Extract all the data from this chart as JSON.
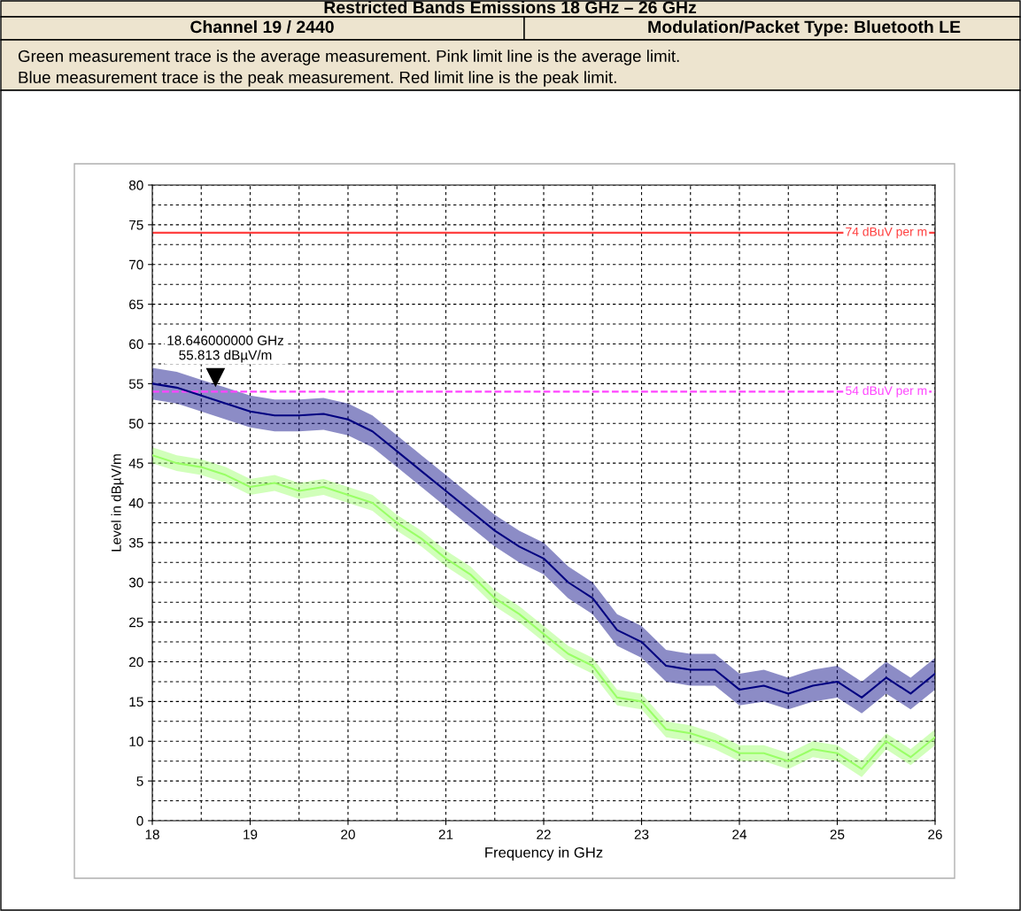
{
  "chart_data": {
    "type": "line",
    "title": "Restricted Bands Emissions 18 GHz – 26 GHz",
    "annotations": [
      "Channel 19 / 2440",
      "Modulation/Packet Type: Bluetooth LE",
      "Green measurement trace is the average measurement. Pink limit line is the average limit.",
      "Blue measurement trace is the peak measurement. Red limit line is the peak limit.",
      {
        "text": "18.646000000 GHz\n55.813 dBµV/m",
        "x": 18.646,
        "y": 55.813
      }
    ],
    "xlabel": "Frequency in GHz",
    "ylabel": "Level in dBµV/m",
    "x": [
      18.0,
      18.25,
      18.5,
      18.75,
      19.0,
      19.25,
      19.5,
      19.75,
      20.0,
      20.25,
      20.5,
      20.75,
      21.0,
      21.25,
      21.5,
      21.75,
      22.0,
      22.25,
      22.5,
      22.75,
      23.0,
      23.25,
      23.5,
      23.75,
      24.0,
      24.25,
      24.5,
      24.75,
      25.0,
      25.25,
      25.5,
      25.75,
      26.0
    ],
    "series": [
      {
        "color": "#000080",
        "values": [
          55,
          54.5,
          53.5,
          52.5,
          51.5,
          51,
          51,
          51.2,
          50.5,
          49,
          46.5,
          44,
          41.5,
          39,
          36.5,
          34.5,
          33,
          30,
          28,
          24,
          22.5,
          19.5,
          19,
          19,
          16.5,
          17,
          16,
          17,
          17.5,
          15.5,
          18,
          16,
          18.5
        ],
        "lower": [
          53,
          52.5,
          51.5,
          50.5,
          49.5,
          49,
          49,
          49.2,
          48.5,
          47,
          44.5,
          42,
          39.5,
          37,
          34.5,
          32.5,
          31,
          28,
          26,
          22,
          20.5,
          17.5,
          17,
          17,
          14.5,
          15,
          14,
          15,
          15.5,
          13.5,
          16,
          14,
          16.5
        ],
        "upper": [
          57,
          56.5,
          55.5,
          54.5,
          53.5,
          53,
          53,
          53.2,
          52.5,
          51,
          48.5,
          46,
          43.5,
          41,
          38.5,
          36.5,
          35,
          32,
          30,
          26,
          24.5,
          21.5,
          21,
          21,
          18.5,
          19,
          18,
          19,
          19.5,
          17.5,
          20,
          18,
          20.5
        ]
      },
      {
        "color": "#99ff66",
        "values": [
          46,
          45,
          44.5,
          43.5,
          42,
          42.5,
          41.5,
          42,
          41,
          40,
          37.5,
          35.5,
          33,
          31,
          28,
          26,
          23.5,
          21,
          19.5,
          15.5,
          15,
          11.5,
          11,
          10,
          8.5,
          8.5,
          7.5,
          9,
          8.5,
          6.5,
          10,
          8,
          10.5
        ],
        "lower": [
          45,
          44,
          43.5,
          42.5,
          41,
          41.5,
          40.5,
          41,
          40,
          39,
          36.5,
          34.5,
          32,
          30,
          27,
          25,
          22.5,
          20,
          18.5,
          14.5,
          14,
          10.5,
          10,
          9,
          7.5,
          7.5,
          6.5,
          8,
          7.5,
          5.5,
          9,
          7,
          9.5
        ],
        "upper": [
          47,
          46,
          45.5,
          44.5,
          43,
          43.5,
          42.5,
          43,
          42,
          41,
          38.5,
          36.5,
          34,
          32,
          29,
          27,
          24.5,
          22,
          20.5,
          16.5,
          16,
          12.5,
          12,
          11,
          9.5,
          9.5,
          8.5,
          10,
          9.5,
          7.5,
          11,
          9,
          11.5
        ]
      }
    ],
    "ref_lines": [
      {
        "axis": "y",
        "value": 74,
        "label": "74 dBuV per m",
        "color": "#ff4040",
        "line_style": "solid"
      },
      {
        "axis": "y",
        "value": 54,
        "label": "54 dBuV per m",
        "color": "#ff44ff",
        "line_style": "dashed"
      }
    ],
    "xlim": [
      18,
      26
    ],
    "ylim": [
      0,
      80
    ],
    "xticks": [
      18,
      19,
      20,
      21,
      22,
      23,
      24,
      25,
      26
    ],
    "yticks": [
      0,
      5,
      10,
      15,
      20,
      25,
      30,
      35,
      40,
      45,
      50,
      55,
      60,
      65,
      70,
      75,
      80
    ],
    "grid": true,
    "line_style": "solid"
  }
}
